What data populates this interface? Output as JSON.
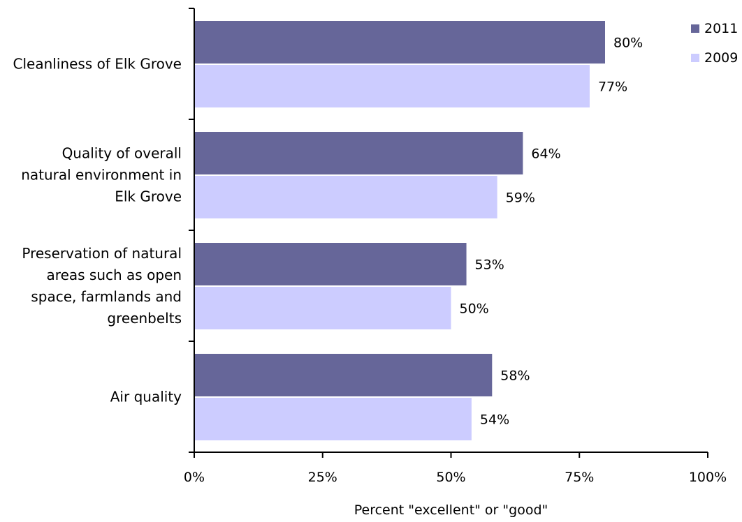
{
  "chart_data": {
    "type": "bar",
    "orientation": "horizontal",
    "categories": [
      "Cleanliness of Elk Grove",
      "Quality of overall natural environment in Elk Grove",
      "Preservation of natural areas such as open space, farmlands and greenbelts",
      "Air quality"
    ],
    "category_label_lines": [
      [
        "Cleanliness of Elk Grove"
      ],
      [
        "Quality of overall",
        "natural environment in",
        "Elk Grove"
      ],
      [
        "Preservation of natural",
        "areas such as open",
        "space, farmlands and",
        "greenbelts"
      ],
      [
        "Air quality"
      ]
    ],
    "series": [
      {
        "name": "2011",
        "values": [
          80,
          64,
          53,
          58
        ],
        "labels": [
          "80%",
          "64%",
          "53%",
          "58%"
        ],
        "color": "#666699"
      },
      {
        "name": "2009",
        "values": [
          77,
          59,
          50,
          54
        ],
        "labels": [
          "77%",
          "59%",
          "50%",
          "54%"
        ],
        "color": "#ccccff"
      }
    ],
    "title": "",
    "xlabel": "Percent \"excellent\" or \"good\"",
    "ylabel": "",
    "xlim": [
      0,
      100
    ],
    "xticks": [
      0,
      25,
      50,
      75,
      100
    ],
    "xtick_labels": [
      "0%",
      "25%",
      "50%",
      "75%",
      "100%"
    ],
    "grid": false,
    "legend_position": "top-right"
  }
}
